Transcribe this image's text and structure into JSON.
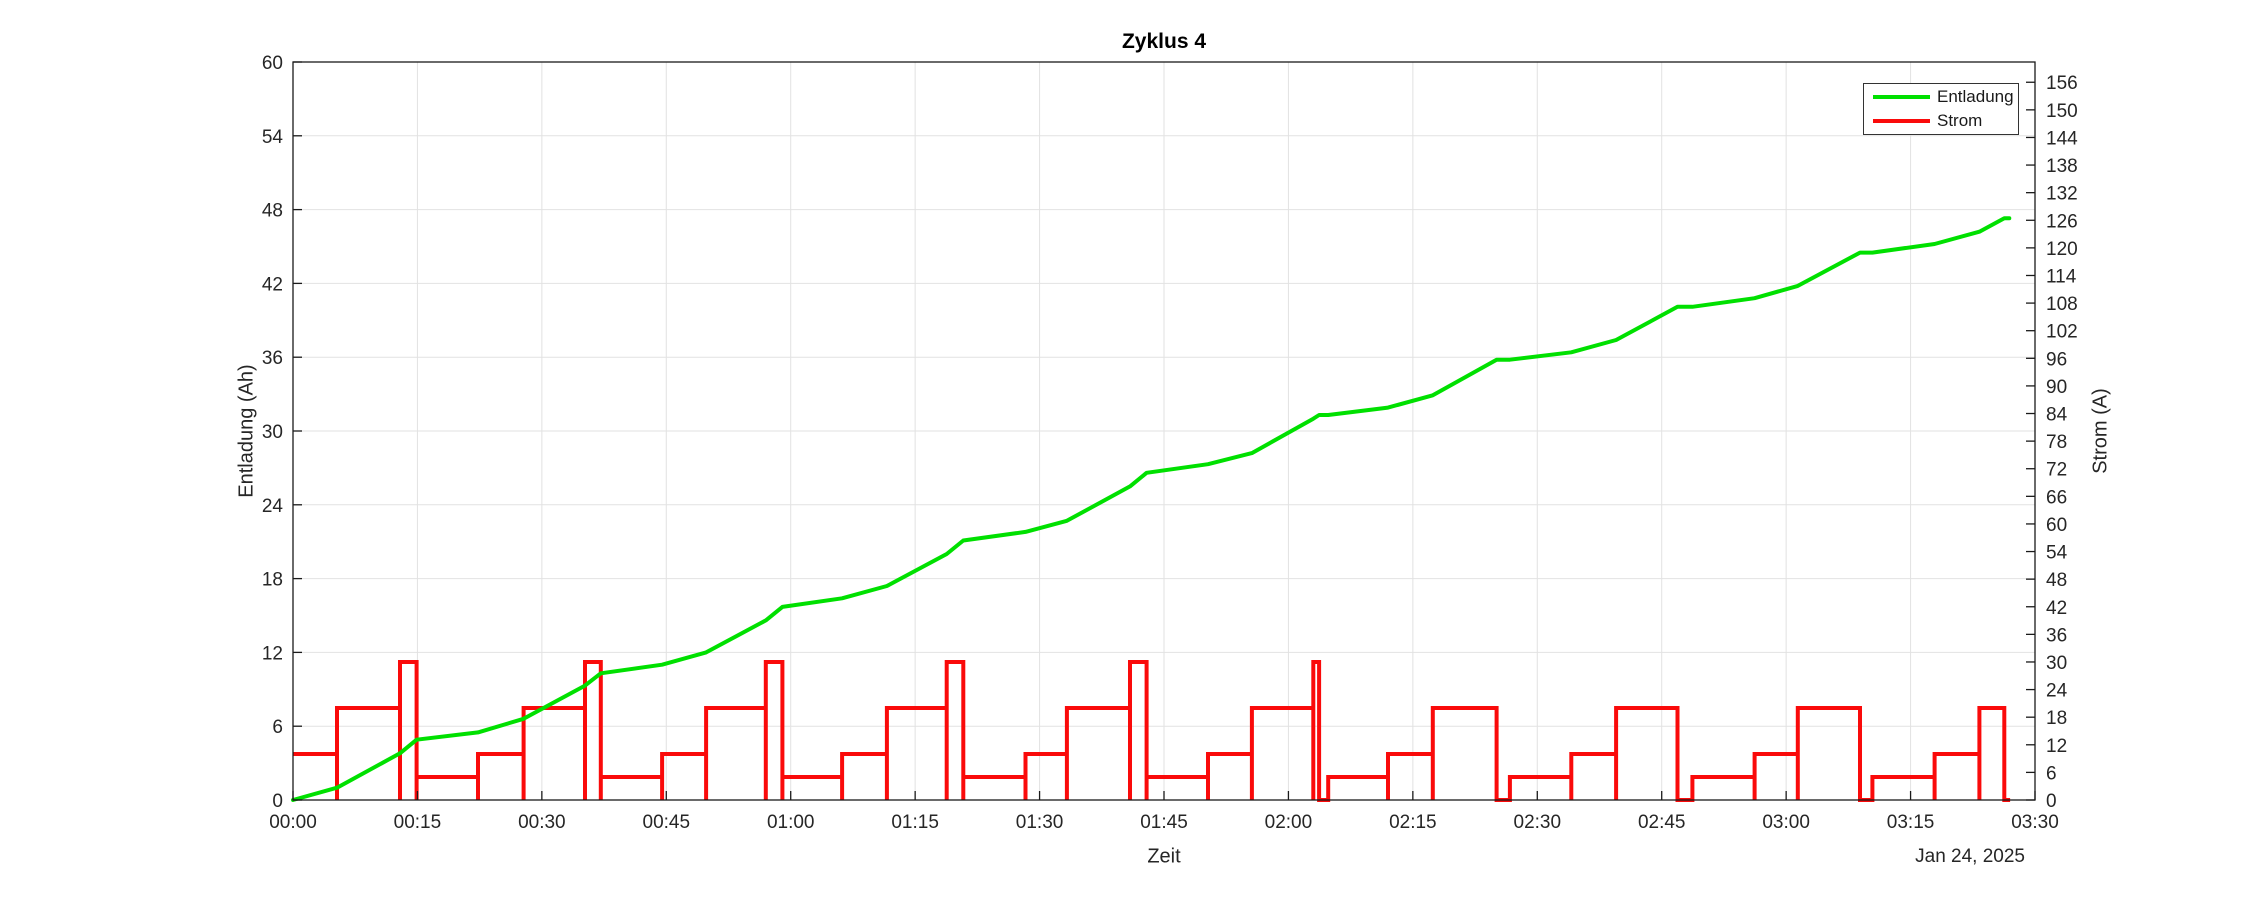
{
  "figure": {
    "title": "Zyklus 4",
    "xlabel": "Zeit",
    "date_label": "Jan 24, 2025",
    "ylabel_left": "Entladung (Ah)",
    "ylabel_right": "Strom (A)",
    "legend": [
      {
        "label": "Entladung",
        "color": "#00E000"
      },
      {
        "label": "Strom",
        "color": "#FA0A0A"
      }
    ]
  },
  "chart_data": {
    "type": "line",
    "title": "Zyklus 4",
    "xlabel": "Zeit",
    "date_annotation": "Jan 24, 2025",
    "x_axis": {
      "unit": "time (hh:mm)",
      "range_minutes": [
        0,
        210
      ],
      "tick_minutes": [
        0,
        15,
        30,
        45,
        60,
        75,
        90,
        105,
        120,
        135,
        150,
        165,
        180,
        195,
        210
      ],
      "tick_labels": [
        "00:00",
        "00:15",
        "00:30",
        "00:45",
        "01:00",
        "01:15",
        "01:30",
        "01:45",
        "02:00",
        "02:15",
        "02:30",
        "02:45",
        "03:00",
        "03:15",
        "03:30"
      ]
    },
    "y_left": {
      "label": "Entladung (Ah)",
      "range": [
        0,
        60
      ],
      "ticks": [
        0,
        6,
        12,
        18,
        24,
        30,
        36,
        42,
        48,
        54,
        60
      ]
    },
    "y_right": {
      "label": "Strom (A)",
      "range": [
        0,
        160.4
      ],
      "ticks": [
        0,
        6,
        12,
        18,
        24,
        30,
        36,
        42,
        48,
        54,
        60,
        66,
        72,
        78,
        84,
        90,
        96,
        102,
        108,
        114,
        120,
        126,
        132,
        138,
        144,
        150,
        156
      ]
    },
    "grid": {
      "vertical": true,
      "horizontal": true,
      "color": "#E2E2E2"
    },
    "axis_color": "#1a1a1a",
    "legend_position": "top-right",
    "series": [
      {
        "name": "Entladung",
        "axis": "left",
        "color": "#00E000",
        "style": "line",
        "points_min_ah": [
          [
            0,
            0
          ],
          [
            5.3,
            1.0
          ],
          [
            12.9,
            3.8
          ],
          [
            14.9,
            4.9
          ],
          [
            22.3,
            5.5
          ],
          [
            27.8,
            6.6
          ],
          [
            35.2,
            9.3
          ],
          [
            37.1,
            10.3
          ],
          [
            44.5,
            11.0
          ],
          [
            49.8,
            12.0
          ],
          [
            57.0,
            14.6
          ],
          [
            59.0,
            15.7
          ],
          [
            66.2,
            16.4
          ],
          [
            71.6,
            17.4
          ],
          [
            78.8,
            20.0
          ],
          [
            80.8,
            21.1
          ],
          [
            88.3,
            21.8
          ],
          [
            93.3,
            22.7
          ],
          [
            100.9,
            25.5
          ],
          [
            102.9,
            26.6
          ],
          [
            110.3,
            27.3
          ],
          [
            115.6,
            28.2
          ],
          [
            123.0,
            31.0
          ],
          [
            123.7,
            31.3
          ],
          [
            124.8,
            31.3
          ],
          [
            132.0,
            31.9
          ],
          [
            137.4,
            32.9
          ],
          [
            145.1,
            35.8
          ],
          [
            146.7,
            35.8
          ],
          [
            154.1,
            36.4
          ],
          [
            159.5,
            37.4
          ],
          [
            166.9,
            40.1
          ],
          [
            168.7,
            40.1
          ],
          [
            176.2,
            40.8
          ],
          [
            181.4,
            41.8
          ],
          [
            188.9,
            44.5
          ],
          [
            190.4,
            44.5
          ],
          [
            197.9,
            45.2
          ],
          [
            203.3,
            46.2
          ],
          [
            206.3,
            47.3
          ],
          [
            206.9,
            47.3
          ]
        ]
      },
      {
        "name": "Strom",
        "axis": "right",
        "color": "#FA0A0A",
        "style": "step-pulses",
        "segments_min_amps": [
          [
            0,
            5.3,
            10
          ],
          [
            5.3,
            12.9,
            20
          ],
          [
            12.9,
            14.9,
            30
          ],
          [
            14.9,
            22.3,
            5
          ],
          [
            22.3,
            27.8,
            10
          ],
          [
            27.8,
            35.2,
            20
          ],
          [
            35.2,
            37.1,
            30
          ],
          [
            37.1,
            44.5,
            5
          ],
          [
            44.5,
            49.8,
            10
          ],
          [
            49.8,
            57.0,
            20
          ],
          [
            57.0,
            59.0,
            30
          ],
          [
            59.0,
            66.2,
            5
          ],
          [
            66.2,
            71.6,
            10
          ],
          [
            71.6,
            78.8,
            20
          ],
          [
            78.8,
            80.8,
            30
          ],
          [
            80.8,
            88.3,
            5
          ],
          [
            88.3,
            93.3,
            10
          ],
          [
            93.3,
            100.9,
            20
          ],
          [
            100.9,
            102.9,
            30
          ],
          [
            102.9,
            110.3,
            5
          ],
          [
            110.3,
            115.6,
            10
          ],
          [
            115.6,
            123.0,
            20
          ],
          [
            123.0,
            123.7,
            30
          ],
          [
            124.8,
            132.0,
            5
          ],
          [
            132.0,
            137.4,
            10
          ],
          [
            137.4,
            145.1,
            20
          ],
          [
            146.7,
            154.1,
            5
          ],
          [
            154.1,
            159.5,
            10
          ],
          [
            159.5,
            166.9,
            20
          ],
          [
            168.7,
            176.2,
            5
          ],
          [
            176.2,
            181.4,
            10
          ],
          [
            181.4,
            188.9,
            20
          ],
          [
            190.4,
            197.9,
            5
          ],
          [
            197.9,
            203.3,
            10
          ],
          [
            203.3,
            206.3,
            20
          ]
        ],
        "end_minute": 207
      }
    ]
  }
}
